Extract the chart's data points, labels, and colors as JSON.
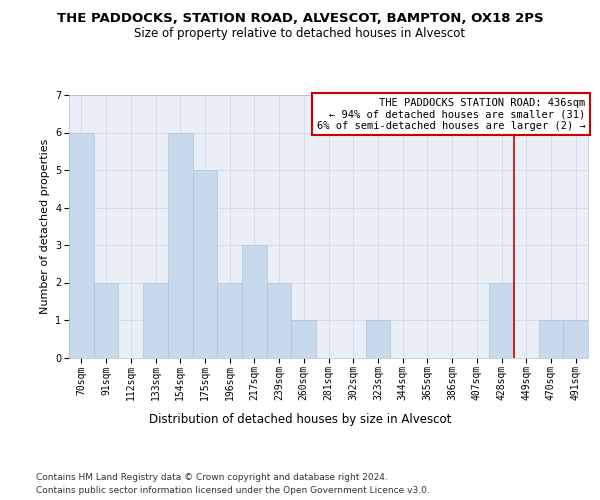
{
  "title": "THE PADDOCKS, STATION ROAD, ALVESCOT, BAMPTON, OX18 2PS",
  "subtitle": "Size of property relative to detached houses in Alvescot",
  "xlabel": "Distribution of detached houses by size in Alvescot",
  "ylabel": "Number of detached properties",
  "categories": [
    "70sqm",
    "91sqm",
    "112sqm",
    "133sqm",
    "154sqm",
    "175sqm",
    "196sqm",
    "217sqm",
    "239sqm",
    "260sqm",
    "281sqm",
    "302sqm",
    "323sqm",
    "344sqm",
    "365sqm",
    "386sqm",
    "407sqm",
    "428sqm",
    "449sqm",
    "470sqm",
    "491sqm"
  ],
  "values": [
    6,
    2,
    0,
    2,
    6,
    5,
    2,
    3,
    2,
    1,
    0,
    0,
    1,
    0,
    0,
    0,
    0,
    2,
    0,
    1,
    1
  ],
  "bar_color": "#c9d9ec",
  "bar_edge_color": "#a8c4dc",
  "highlight_line_color": "#cc0000",
  "annotation_text": "THE PADDOCKS STATION ROAD: 436sqm\n← 94% of detached houses are smaller (31)\n6% of semi-detached houses are larger (2) →",
  "annotation_box_color": "#ffffff",
  "annotation_box_edge_color": "#cc0000",
  "ylim": [
    0,
    7
  ],
  "yticks": [
    0,
    1,
    2,
    3,
    4,
    5,
    6,
    7
  ],
  "grid_color": "#d0d8e8",
  "background_color": "#eaeff7",
  "footer_line1": "Contains HM Land Registry data © Crown copyright and database right 2024.",
  "footer_line2": "Contains public sector information licensed under the Open Government Licence v3.0.",
  "title_fontsize": 9.5,
  "subtitle_fontsize": 8.5,
  "xlabel_fontsize": 8.5,
  "ylabel_fontsize": 8,
  "tick_fontsize": 7,
  "footer_fontsize": 6.5,
  "annotation_fontsize": 7.5
}
